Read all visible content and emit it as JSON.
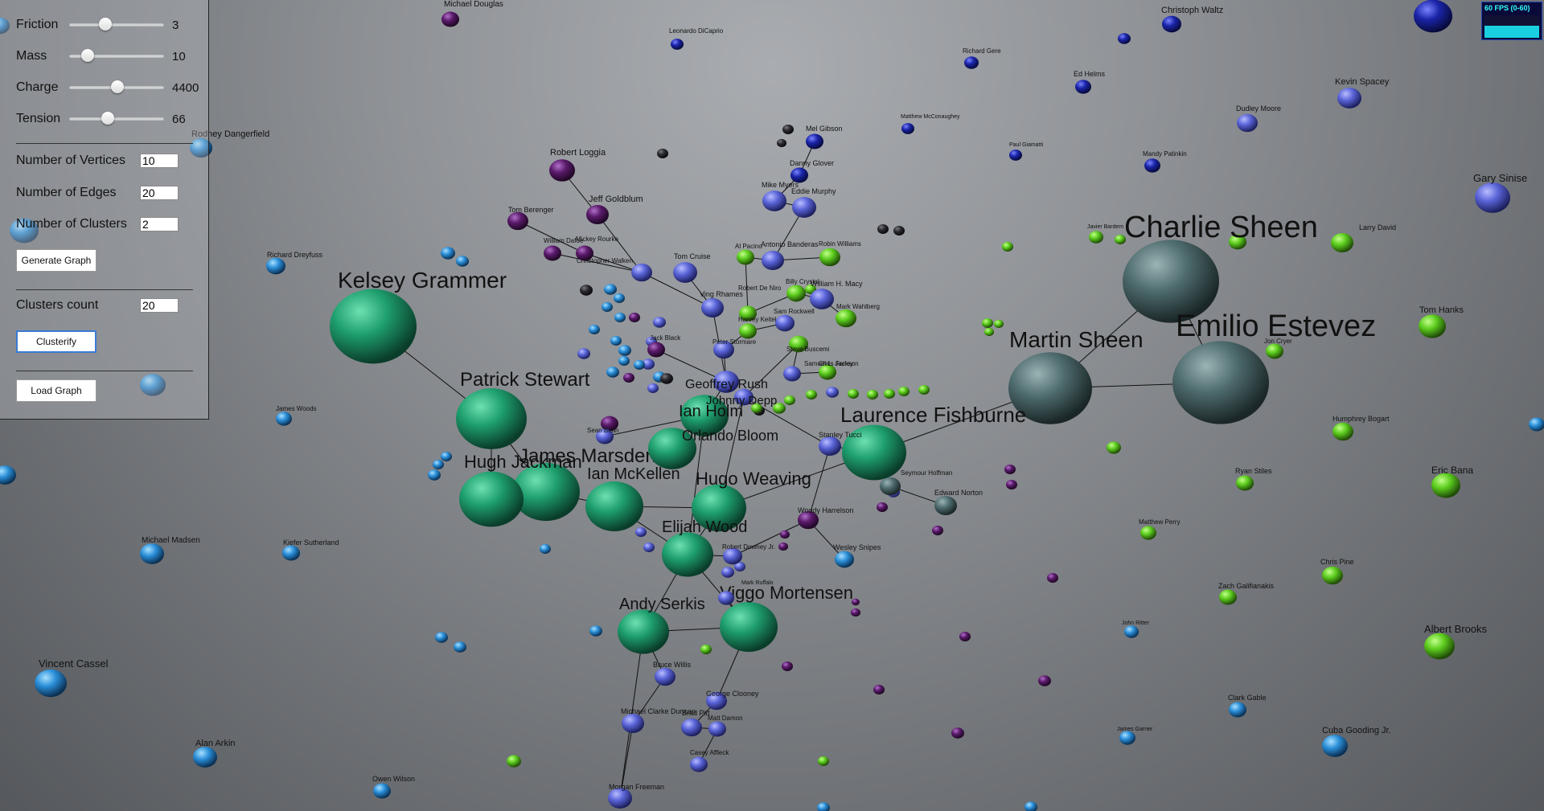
{
  "controls": {
    "sliders": [
      {
        "label": "Friction",
        "value": "3",
        "pos": 0.3
      },
      {
        "label": "Mass",
        "value": "10",
        "pos": 0.1
      },
      {
        "label": "Charge",
        "value": "4400",
        "pos": 0.44
      },
      {
        "label": "Tension",
        "value": "66",
        "pos": 0.33
      }
    ],
    "vertices_label": "Number of Vertices",
    "vertices_value": "10",
    "edges_label": "Number of Edges",
    "edges_value": "20",
    "clusters_label": "Number of Clusters",
    "clusters_value": "2",
    "generate_label": "Generate Graph",
    "clusters_count_label": "Clusters count",
    "clusters_count_value": "20",
    "clusterify_label": "Clusterify",
    "load_label": "Load Graph"
  },
  "fps": {
    "label": "60 FPS (0-60)",
    "level": 0.55
  },
  "colors": {
    "green": "#1e9e6e",
    "blue": "#5a64d8",
    "purple": "#5a1a6a",
    "lime": "#5ccc1e",
    "sky": "#2a8ed8",
    "gray": "#4f6c6e",
    "dark": "#2a2a30"
  },
  "nodes": [
    {
      "name": "Charlie Sheen",
      "c": "gray",
      "big": true
    },
    {
      "name": "Martin Sheen",
      "c": "gray",
      "big": true
    },
    {
      "name": "Emilio Estevez",
      "c": "gray",
      "big": true
    },
    {
      "name": "Kelsey Grammer",
      "c": "green",
      "big": true
    },
    {
      "name": "Patrick Stewart",
      "c": "green",
      "big": true
    },
    {
      "name": "Laurence Fishburne",
      "c": "green",
      "big": true
    },
    {
      "name": "James Marsden",
      "c": "green",
      "big": true
    },
    {
      "name": "Hugh Jackman",
      "c": "green",
      "big": true
    },
    {
      "name": "Ian McKellen",
      "c": "green",
      "big": true
    },
    {
      "name": "Hugo Weaving",
      "c": "green",
      "big": true
    },
    {
      "name": "Elijah Wood",
      "c": "green",
      "big": true
    },
    {
      "name": "Andy Serkis",
      "c": "green",
      "big": true
    },
    {
      "name": "Viggo Mortensen",
      "c": "green",
      "big": true
    },
    {
      "name": "Ian Holm",
      "c": "green",
      "big": true
    },
    {
      "name": "Orlando Bloom",
      "c": "green",
      "big": true
    },
    {
      "name": "Geoffrey Rush",
      "c": "blue"
    },
    {
      "name": "Johnny Depp",
      "c": "blue"
    },
    {
      "name": "Robert Loggia",
      "c": "purple"
    },
    {
      "name": "Jeff Goldblum",
      "c": "purple"
    },
    {
      "name": "Tom Berenger",
      "c": "purple"
    },
    {
      "name": "Mel Gibson",
      "c": "blue"
    },
    {
      "name": "Danny Glover",
      "c": "blue"
    },
    {
      "name": "Mike Myers",
      "c": "blue"
    },
    {
      "name": "Eddie Murphy",
      "c": "blue"
    },
    {
      "name": "Antonio Banderas",
      "c": "blue"
    },
    {
      "name": "Robin Williams",
      "c": "lime"
    },
    {
      "name": "Al Pacino",
      "c": "lime"
    },
    {
      "name": "Tom Cruise",
      "c": "blue"
    },
    {
      "name": "Christopher Walken",
      "c": "blue"
    },
    {
      "name": "Ving Rhames",
      "c": "blue"
    },
    {
      "name": "Robert De Niro",
      "c": "lime"
    },
    {
      "name": "Billy Crystal",
      "c": "lime"
    },
    {
      "name": "William H. Macy",
      "c": "blue"
    },
    {
      "name": "Mark Wahlberg",
      "c": "lime"
    },
    {
      "name": "Sam Rockwell",
      "c": "blue"
    },
    {
      "name": "Harvey Keitel",
      "c": "lime"
    },
    {
      "name": "Peter Stormare",
      "c": "blue"
    },
    {
      "name": "Steve Buscemi",
      "c": "lime"
    },
    {
      "name": "Chris Farley",
      "c": "lime"
    },
    {
      "name": "Samuel L. Jackson",
      "c": "blue"
    },
    {
      "name": "Stanley Tucci",
      "c": "blue"
    },
    {
      "name": "Seymour Hoffman",
      "c": "gray"
    },
    {
      "name": "Edward Norton",
      "c": "gray"
    },
    {
      "name": "Woody Harrelson",
      "c": "purple"
    },
    {
      "name": "Wesley Snipes",
      "c": "sky"
    },
    {
      "name": "Robert Downey Jr.",
      "c": "blue"
    },
    {
      "name": "Mark Ruffalo",
      "c": "blue"
    },
    {
      "name": "Bruce Willis",
      "c": "blue"
    },
    {
      "name": "George Clooney",
      "c": "blue"
    },
    {
      "name": "Brad Pitt",
      "c": "blue"
    },
    {
      "name": "Matt Damon",
      "c": "blue"
    },
    {
      "name": "Michael Clarke Duncan",
      "c": "blue"
    },
    {
      "name": "Casey Affleck",
      "c": "blue"
    },
    {
      "name": "Morgan Freeman",
      "c": "blue"
    },
    {
      "name": "Christoph Waltz",
      "c": "blue"
    },
    {
      "name": "Kevin Spacey",
      "c": "blue"
    },
    {
      "name": "Dudley Moore",
      "c": "blue"
    },
    {
      "name": "Gary Sinise",
      "c": "blue"
    },
    {
      "name": "Larry David",
      "c": "lime"
    },
    {
      "name": "Tom Hanks",
      "c": "lime"
    },
    {
      "name": "Jon Cryer",
      "c": "lime"
    },
    {
      "name": "Humphrey Bogart",
      "c": "lime"
    },
    {
      "name": "Ryan Stiles",
      "c": "lime"
    },
    {
      "name": "Eric Bana",
      "c": "lime"
    },
    {
      "name": "Chris Pine",
      "c": "lime"
    },
    {
      "name": "Zach Galifianakis",
      "c": "lime"
    },
    {
      "name": "Albert Brooks",
      "c": "lime"
    },
    {
      "name": "Cuba Gooding Jr.",
      "c": "sky"
    },
    {
      "name": "James Garner",
      "c": "sky"
    },
    {
      "name": "Clark Gable",
      "c": "sky"
    },
    {
      "name": "John Ritter",
      "c": "sky"
    },
    {
      "name": "Matthew Perry",
      "c": "lime"
    },
    {
      "name": "Leonardo DiCaprio",
      "c": "blue"
    },
    {
      "name": "Michael Douglas",
      "c": "purple"
    },
    {
      "name": "Matthew McConaughey",
      "c": "blue"
    },
    {
      "name": "Paul Giamatti",
      "c": "blue"
    },
    {
      "name": "Mandy Patinkin",
      "c": "blue"
    },
    {
      "name": "Ed Helms",
      "c": "blue"
    },
    {
      "name": "Richard Gere",
      "c": "blue"
    },
    {
      "name": "Rodney Dangerfield",
      "c": "sky"
    },
    {
      "name": "Richard Dreyfuss",
      "c": "sky"
    },
    {
      "name": "James Woods",
      "c": "sky"
    },
    {
      "name": "Michael Madsen",
      "c": "sky"
    },
    {
      "name": "Kiefer Sutherland",
      "c": "sky"
    },
    {
      "name": "Vincent Cassel",
      "c": "sky"
    },
    {
      "name": "Alan Arkin",
      "c": "sky"
    },
    {
      "name": "Owen Wilson",
      "c": "sky"
    },
    {
      "name": "Jack Black",
      "c": "purple"
    },
    {
      "name": "Javier Bardem",
      "c": "lime"
    },
    {
      "name": "William Dafoe",
      "c": "purple"
    },
    {
      "name": "Mickey Rourke",
      "c": "purple"
    },
    {
      "name": "Sean Bean",
      "c": "blue"
    }
  ]
}
